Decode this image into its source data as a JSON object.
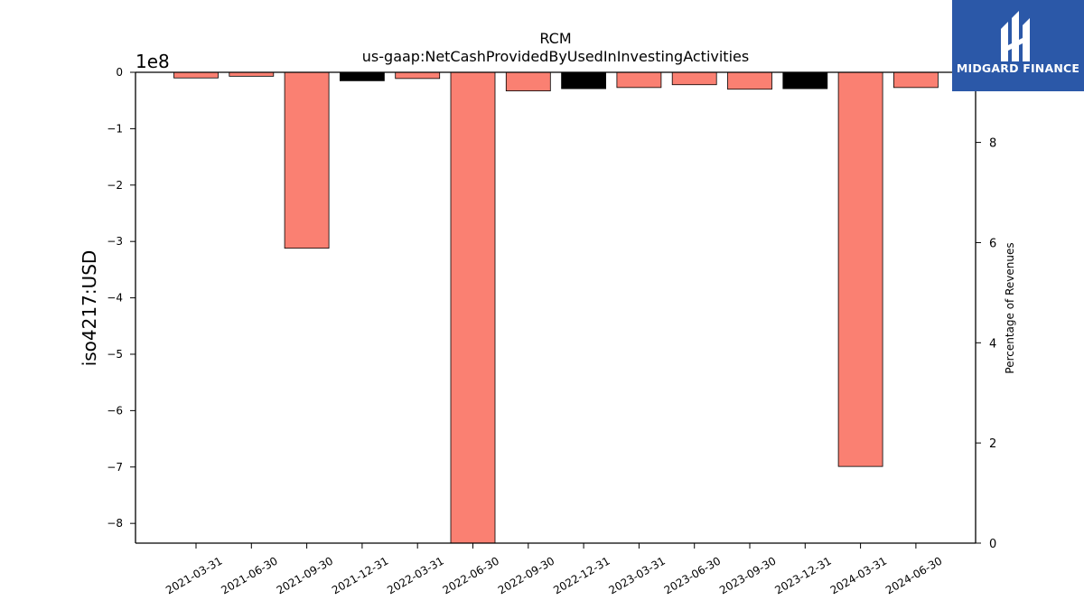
{
  "chart_data": {
    "type": "bar",
    "title": "RCM",
    "subtitle": "us-gaap:NetCashProvidedByUsedInInvestingActivities",
    "ylabel": "iso4217:USD",
    "y2label": "Percentage of Revenues",
    "offset_label": "1e8",
    "ylim": [
      -8.35,
      0
    ],
    "y_ticks": [
      0,
      -1,
      -2,
      -3,
      -4,
      -5,
      -6,
      -7,
      -8
    ],
    "y_tick_labels": [
      "0",
      "−1",
      "−2",
      "−3",
      "−4",
      "−5",
      "−6",
      "−7",
      "−8"
    ],
    "y2lim": [
      0,
      9.4
    ],
    "y2_ticks": [
      0,
      2,
      4,
      6,
      8
    ],
    "y2_tick_labels": [
      "0",
      "2",
      "4",
      "6",
      "8"
    ],
    "categories": [
      "2021-03-31",
      "2021-06-30",
      "2021-09-30",
      "2021-12-31",
      "2022-03-31",
      "2022-06-30",
      "2022-09-30",
      "2022-12-31",
      "2023-03-31",
      "2023-06-30",
      "2023-09-30",
      "2023-12-31",
      "2024-03-31",
      "2024-06-30"
    ],
    "values": [
      -0.1,
      -0.07,
      -3.12,
      -0.15,
      -0.11,
      -8.4,
      -0.33,
      -0.29,
      -0.27,
      -0.22,
      -0.3,
      -0.29,
      -6.99,
      -0.27
    ],
    "bar_colors": [
      "#fa8072",
      "#fa8072",
      "#fa8072",
      "#000000",
      "#fa8072",
      "#fa8072",
      "#fa8072",
      "#000000",
      "#fa8072",
      "#fa8072",
      "#fa8072",
      "#000000",
      "#fa8072",
      "#fa8072"
    ],
    "grid": false
  },
  "logo": {
    "text": "MIDGARD FINANCE",
    "background": "#2b58a8",
    "icon": "midgard-logo-icon"
  }
}
